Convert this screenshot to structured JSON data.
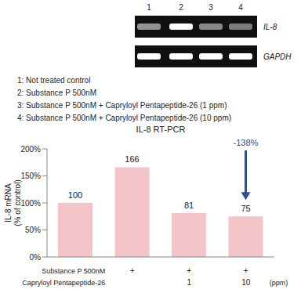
{
  "gel": {
    "lanes": [
      "1",
      "2",
      "3",
      "4"
    ],
    "rows": [
      "IL-8",
      "GAPDH"
    ]
  },
  "legend_list": [
    "1: Not treated control",
    "2: Substance P 500nM",
    "3: Substance P 500nM + Capryloyl Pentapeptide-26 (1 ppm)",
    "4: Substance P 500nM + Capryloyl Pentapeptide-26 (10 ppm)"
  ],
  "chart_data": {
    "type": "bar",
    "title": "IL-8 RT-PCR",
    "y_label": "IL-8 mRNA (% of control)",
    "categories": [
      null,
      null,
      null,
      null
    ],
    "values": [
      100,
      166,
      81,
      75
    ],
    "color": "#f3c5c8",
    "ylim": [
      0,
      200
    ],
    "yticks": [
      {
        "value": 0,
        "label": "0%"
      },
      {
        "value": 50,
        "label": "50%"
      },
      {
        "value": 100,
        "label": "100%"
      },
      {
        "value": 150,
        "label": "150%"
      },
      {
        "value": 200,
        "label": "200%"
      }
    ],
    "data_labels": true,
    "grid": false,
    "treatments": [
      {
        "label": "Substance P 500nM",
        "marks": [
          null,
          "+",
          "+",
          "+"
        ]
      },
      {
        "label": "Capryloyl Pentapeptide-26",
        "marks": [
          null,
          null,
          "1",
          "10"
        ],
        "unit": "(ppm)"
      }
    ],
    "annotation": {
      "text": "-138%",
      "color": "#2f4f8f"
    }
  }
}
